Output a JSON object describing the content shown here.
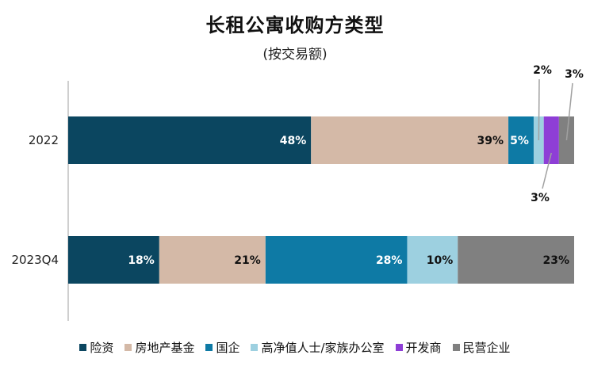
{
  "chart_data": {
    "type": "bar",
    "orientation": "horizontal",
    "stacked": true,
    "title": "长租公寓收购方类型",
    "subtitle": "(按交易额)",
    "categories": [
      "2022",
      "2023Q4"
    ],
    "series": [
      {
        "name": "险资",
        "color": "#0b4660",
        "values": [
          48,
          18
        ],
        "labels": [
          "48%",
          "18%"
        ]
      },
      {
        "name": "房地产基金",
        "color": "#d4b9a7",
        "values": [
          39,
          21
        ],
        "labels": [
          "39%",
          "21%"
        ]
      },
      {
        "name": "国企",
        "color": "#0e7aa5",
        "values": [
          5,
          28
        ],
        "labels": [
          "5%",
          "28%"
        ]
      },
      {
        "name": "高净值人士/家族办公室",
        "color": "#9dd0e0",
        "values": [
          2,
          10
        ],
        "labels": [
          "2%",
          "10%"
        ]
      },
      {
        "name": "开发商",
        "color": "#8e3ed6",
        "values": [
          3,
          0
        ],
        "labels": [
          "3%",
          ""
        ]
      },
      {
        "name": "民营企业",
        "color": "#808080",
        "values": [
          3,
          23
        ],
        "labels": [
          "3%",
          "23%"
        ]
      }
    ],
    "xlim": [
      0,
      100
    ],
    "legend_position": "bottom",
    "grid": false
  }
}
